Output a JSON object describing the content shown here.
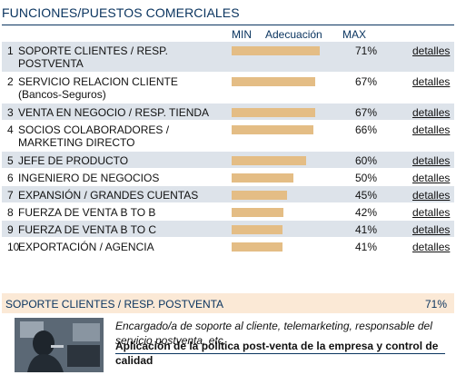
{
  "title": "FUNCIONES/PUESTOS COMERCIALES",
  "columns": {
    "min": "MIN",
    "adecuacion": "Adecuación",
    "max": "MAX"
  },
  "colors": {
    "shade": "#dde3ea",
    "bar": "#e4bd85",
    "title": "#0b3560",
    "detail_bg": "#fbe9d6"
  },
  "rows": [
    {
      "num": "1",
      "name": "SOPORTE CLIENTES / RESP. POSTVENTA",
      "value": 71,
      "pct": "71%",
      "link": "detalles"
    },
    {
      "num": "2",
      "name": "SERVICIO RELACION CLIENTE (Bancos-Seguros)",
      "value": 67,
      "pct": "67%",
      "link": "detalles"
    },
    {
      "num": "3",
      "name": "VENTA EN NEGOCIO / RESP. TIENDA",
      "value": 67,
      "pct": "67%",
      "link": "detalles"
    },
    {
      "num": "4",
      "name": "SOCIOS COLABORADORES / MARKETING DIRECTO",
      "value": 66,
      "pct": "66%",
      "link": "detalles"
    },
    {
      "num": "5",
      "name": "JEFE DE PRODUCTO",
      "value": 60,
      "pct": "60%",
      "link": "detalles"
    },
    {
      "num": "6",
      "name": "INGENIERO DE NEGOCIOS",
      "value": 50,
      "pct": "50%",
      "link": "detalles"
    },
    {
      "num": "7",
      "name": "EXPANSIÓN / GRANDES CUENTAS",
      "value": 45,
      "pct": "45%",
      "link": "detalles"
    },
    {
      "num": "8",
      "name": "FUERZA DE VENTA B TO B",
      "value": 42,
      "pct": "42%",
      "link": "detalles"
    },
    {
      "num": "9",
      "name": "FUERZA DE VENTA B TO C",
      "value": 41,
      "pct": "41%",
      "link": "detalles"
    },
    {
      "num": "10",
      "name": "EXPORTACIÓN / AGENCIA",
      "value": 41,
      "pct": "41%",
      "link": "detalles"
    }
  ],
  "detail": {
    "name": "SOPORTE CLIENTES / RESP. POSTVENTA",
    "pct": "71%",
    "description": "Encargado/a de soporte al cliente, telemarketing, responsable del servicio postventa, etc.",
    "task": "Aplicación de la política post-venta de la empresa y control de calidad"
  }
}
